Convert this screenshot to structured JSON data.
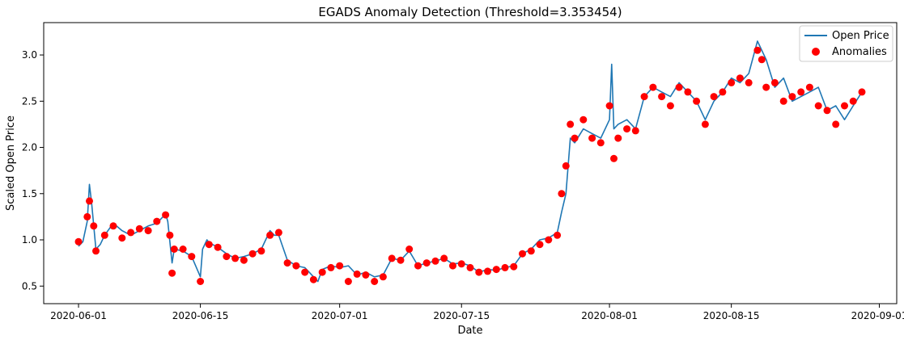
{
  "chart_data": {
    "type": "line",
    "title": "EGADS Anomaly Detection (Threshold=3.353454)",
    "xlabel": "Date",
    "ylabel": "Scaled Open Price",
    "xlim": [
      "2020-05-28",
      "2020-09-03"
    ],
    "ylim": [
      0.31,
      3.35
    ],
    "x_ticks": [
      "2020-06-01",
      "2020-06-15",
      "2020-07-01",
      "2020-07-15",
      "2020-08-01",
      "2020-08-15",
      "2020-09-01"
    ],
    "y_ticks": [
      0.5,
      1.0,
      1.5,
      2.0,
      2.5,
      3.0
    ],
    "grid": false,
    "legend_position": "top-right",
    "colors": {
      "line": "#1f77b4",
      "anomaly": "#ff0000"
    },
    "series": [
      {
        "name": "Open Price",
        "kind": "line",
        "x": [
          "2020-06-01",
          "2020-06-01T12",
          "2020-06-02",
          "2020-06-02T06",
          "2020-06-02T12",
          "2020-06-03",
          "2020-06-03T12",
          "2020-06-04",
          "2020-06-05",
          "2020-06-06",
          "2020-06-07",
          "2020-06-08",
          "2020-06-09",
          "2020-06-10",
          "2020-06-11",
          "2020-06-11T06",
          "2020-06-11T18",
          "2020-06-12",
          "2020-06-13",
          "2020-06-14",
          "2020-06-15",
          "2020-06-15T06",
          "2020-06-15T18",
          "2020-06-16",
          "2020-06-17",
          "2020-06-18",
          "2020-06-19",
          "2020-06-20",
          "2020-06-21",
          "2020-06-22",
          "2020-06-23",
          "2020-06-23T12",
          "2020-06-24",
          "2020-06-25",
          "2020-06-26",
          "2020-06-27",
          "2020-06-28",
          "2020-06-28T12",
          "2020-06-29",
          "2020-06-30",
          "2020-07-01",
          "2020-07-02",
          "2020-07-03",
          "2020-07-04",
          "2020-07-05",
          "2020-07-06",
          "2020-07-07",
          "2020-07-08",
          "2020-07-09",
          "2020-07-10",
          "2020-07-11",
          "2020-07-12",
          "2020-07-13",
          "2020-07-14",
          "2020-07-15",
          "2020-07-16",
          "2020-07-17",
          "2020-07-18",
          "2020-07-19",
          "2020-07-20",
          "2020-07-21",
          "2020-07-22",
          "2020-07-23",
          "2020-07-24",
          "2020-07-25",
          "2020-07-26",
          "2020-07-26T12",
          "2020-07-27",
          "2020-07-27T12",
          "2020-07-28",
          "2020-07-29",
          "2020-07-30",
          "2020-07-31",
          "2020-08-01",
          "2020-08-01T06",
          "2020-08-01T12",
          "2020-08-02",
          "2020-08-03",
          "2020-08-04",
          "2020-08-05",
          "2020-08-06",
          "2020-08-07",
          "2020-08-08",
          "2020-08-09",
          "2020-08-10",
          "2020-08-11",
          "2020-08-12",
          "2020-08-13",
          "2020-08-14",
          "2020-08-15",
          "2020-08-16",
          "2020-08-17",
          "2020-08-18",
          "2020-08-19",
          "2020-08-20",
          "2020-08-21",
          "2020-08-22",
          "2020-08-23",
          "2020-08-24",
          "2020-08-25",
          "2020-08-26",
          "2020-08-27",
          "2020-08-28",
          "2020-08-29",
          "2020-08-30"
        ],
        "y": [
          0.93,
          0.98,
          1.2,
          1.6,
          1.4,
          0.9,
          0.95,
          1.05,
          1.18,
          1.1,
          1.05,
          1.1,
          1.15,
          1.18,
          1.28,
          1.2,
          0.75,
          0.9,
          0.88,
          0.82,
          0.6,
          0.9,
          1.0,
          0.97,
          0.92,
          0.85,
          0.8,
          0.82,
          0.85,
          0.9,
          1.1,
          1.05,
          1.05,
          0.78,
          0.72,
          0.7,
          0.6,
          0.55,
          0.68,
          0.72,
          0.7,
          0.72,
          0.62,
          0.65,
          0.6,
          0.62,
          0.8,
          0.78,
          0.88,
          0.72,
          0.75,
          0.77,
          0.8,
          0.74,
          0.75,
          0.72,
          0.65,
          0.68,
          0.67,
          0.7,
          0.72,
          0.85,
          0.9,
          1.0,
          1.02,
          1.08,
          1.3,
          1.5,
          2.1,
          2.05,
          2.2,
          2.15,
          2.1,
          2.3,
          2.9,
          2.2,
          2.25,
          2.3,
          2.2,
          2.55,
          2.65,
          2.6,
          2.55,
          2.7,
          2.6,
          2.5,
          2.3,
          2.5,
          2.6,
          2.75,
          2.7,
          2.8,
          3.15,
          2.95,
          2.65,
          2.75,
          2.5,
          2.55,
          2.6,
          2.65,
          2.4,
          2.45,
          2.3,
          2.45,
          2.6
        ]
      },
      {
        "name": "Anomalies",
        "kind": "scatter",
        "x": [
          "2020-06-01",
          "2020-06-02",
          "2020-06-02T06",
          "2020-06-02T18",
          "2020-06-03",
          "2020-06-04",
          "2020-06-05",
          "2020-06-06",
          "2020-06-07",
          "2020-06-08",
          "2020-06-09",
          "2020-06-10",
          "2020-06-11",
          "2020-06-11T12",
          "2020-06-11T18",
          "2020-06-12",
          "2020-06-13",
          "2020-06-14",
          "2020-06-15",
          "2020-06-16",
          "2020-06-17",
          "2020-06-18",
          "2020-06-19",
          "2020-06-20",
          "2020-06-21",
          "2020-06-22",
          "2020-06-23",
          "2020-06-24",
          "2020-06-25",
          "2020-06-26",
          "2020-06-27",
          "2020-06-28",
          "2020-06-29",
          "2020-06-30",
          "2020-07-01",
          "2020-07-02",
          "2020-07-03",
          "2020-07-04",
          "2020-07-05",
          "2020-07-06",
          "2020-07-07",
          "2020-07-08",
          "2020-07-09",
          "2020-07-10",
          "2020-07-11",
          "2020-07-12",
          "2020-07-13",
          "2020-07-14",
          "2020-07-15",
          "2020-07-16",
          "2020-07-17",
          "2020-07-18",
          "2020-07-19",
          "2020-07-20",
          "2020-07-21",
          "2020-07-22",
          "2020-07-23",
          "2020-07-24",
          "2020-07-25",
          "2020-07-26",
          "2020-07-26T12",
          "2020-07-27",
          "2020-07-27T12",
          "2020-07-28",
          "2020-07-29",
          "2020-07-30",
          "2020-07-31",
          "2020-08-01",
          "2020-08-01T12",
          "2020-08-02",
          "2020-08-03",
          "2020-08-04",
          "2020-08-05",
          "2020-08-06",
          "2020-08-07",
          "2020-08-08",
          "2020-08-09",
          "2020-08-10",
          "2020-08-11",
          "2020-08-12",
          "2020-08-13",
          "2020-08-14",
          "2020-08-15",
          "2020-08-16",
          "2020-08-17",
          "2020-08-18",
          "2020-08-18T12",
          "2020-08-19",
          "2020-08-20",
          "2020-08-21",
          "2020-08-22",
          "2020-08-23",
          "2020-08-24",
          "2020-08-25",
          "2020-08-26",
          "2020-08-27",
          "2020-08-28",
          "2020-08-29",
          "2020-08-30"
        ],
        "y": [
          0.98,
          1.25,
          1.42,
          1.15,
          0.88,
          1.05,
          1.15,
          1.02,
          1.08,
          1.12,
          1.1,
          1.2,
          1.27,
          1.05,
          0.64,
          0.9,
          0.9,
          0.82,
          0.55,
          0.95,
          0.92,
          0.82,
          0.8,
          0.78,
          0.85,
          0.88,
          1.05,
          1.08,
          0.75,
          0.72,
          0.65,
          0.57,
          0.65,
          0.7,
          0.72,
          0.55,
          0.63,
          0.62,
          0.55,
          0.6,
          0.8,
          0.78,
          0.9,
          0.72,
          0.75,
          0.77,
          0.8,
          0.72,
          0.74,
          0.7,
          0.65,
          0.66,
          0.68,
          0.7,
          0.71,
          0.85,
          0.88,
          0.95,
          1.0,
          1.05,
          1.5,
          1.8,
          2.25,
          2.1,
          2.3,
          2.1,
          2.05,
          2.45,
          1.88,
          2.1,
          2.2,
          2.18,
          2.55,
          2.65,
          2.55,
          2.45,
          2.65,
          2.6,
          2.5,
          2.25,
          2.55,
          2.6,
          2.7,
          2.75,
          2.7,
          3.05,
          2.95,
          2.65,
          2.7,
          2.5,
          2.55,
          2.6,
          2.65,
          2.45,
          2.4,
          2.25,
          2.45,
          2.5,
          2.6
        ]
      }
    ]
  }
}
